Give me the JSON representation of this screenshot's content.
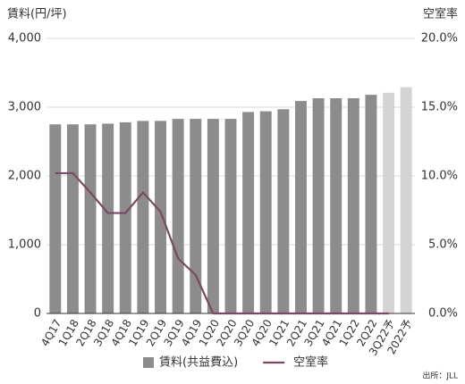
{
  "chart_data": {
    "type": "bar-line",
    "y_title": "賃料(円/坪)",
    "y2_title": "空室率",
    "source": "出所：JLL",
    "categories": [
      "4Q17",
      "1Q18",
      "2Q18",
      "3Q18",
      "4Q18",
      "1Q19",
      "2Q19",
      "3Q19",
      "4Q19",
      "1Q20",
      "2Q20",
      "3Q20",
      "4Q20",
      "1Q21",
      "2Q21",
      "3Q21",
      "4Q21",
      "1Q22",
      "2Q22",
      "3Q22予",
      "2022予"
    ],
    "series": [
      {
        "name": "賃料(共益費込)",
        "type": "bar",
        "color": "#8c8c8c",
        "colors": [
          "#8c8c8c",
          "#8c8c8c",
          "#8c8c8c",
          "#8c8c8c",
          "#8c8c8c",
          "#8c8c8c",
          "#8c8c8c",
          "#8c8c8c",
          "#8c8c8c",
          "#8c8c8c",
          "#8c8c8c",
          "#8c8c8c",
          "#8c8c8c",
          "#8c8c8c",
          "#8c8c8c",
          "#8c8c8c",
          "#8c8c8c",
          "#8c8c8c",
          "#8c8c8c",
          "#d4d4d4",
          "#d4d4d4"
        ],
        "values": [
          2750,
          2750,
          2750,
          2760,
          2780,
          2800,
          2800,
          2830,
          2830,
          2830,
          2830,
          2930,
          2940,
          2970,
          3090,
          3130,
          3130,
          3130,
          3180,
          3210,
          3290
        ]
      },
      {
        "name": "空室率",
        "type": "line",
        "axis": "y2",
        "color": "#7a4a63",
        "values": [
          10.2,
          10.2,
          8.8,
          7.3,
          7.3,
          8.8,
          7.4,
          4.0,
          2.8,
          0,
          0,
          0,
          0,
          0,
          0,
          0,
          0,
          0,
          0,
          0,
          null
        ]
      }
    ],
    "ylim": [
      0,
      4000
    ],
    "yticks": [
      0,
      {
        "value": 1000,
        "label": "1,000"
      },
      {
        "value": 2000,
        "label": "2,000"
      },
      {
        "value": 3000,
        "label": "3,000"
      },
      {
        "value": 4000,
        "label": "4,000"
      }
    ],
    "y2lim": [
      0,
      20
    ],
    "y2ticks": [
      {
        "value": 0,
        "label": "0.0%"
      },
      {
        "value": 5,
        "label": "5.0%"
      },
      {
        "value": 10,
        "label": "10.0%"
      },
      {
        "value": 15,
        "label": "15.0%"
      },
      {
        "value": 20,
        "label": "20.0%"
      }
    ],
    "grid": true
  }
}
